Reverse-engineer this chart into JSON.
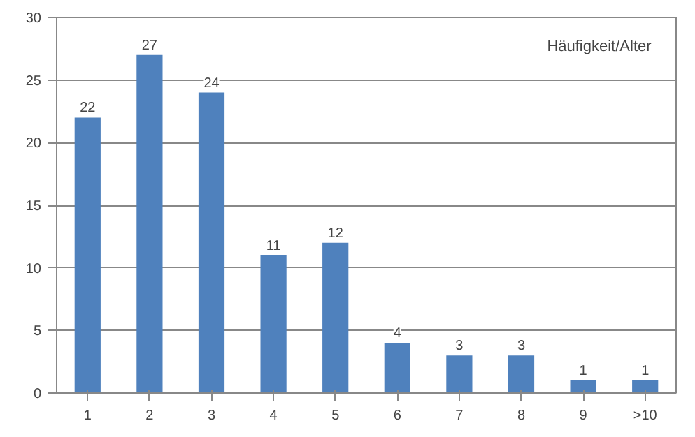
{
  "chart_data": {
    "type": "bar",
    "title": "Häufigkeit/Alter",
    "categories": [
      "1",
      "2",
      "3",
      "4",
      "5",
      "6",
      "7",
      "8",
      "9",
      ">10"
    ],
    "values": [
      22,
      27,
      24,
      11,
      12,
      4,
      3,
      3,
      1,
      1
    ],
    "color": "#4f81bd",
    "ylim": [
      0,
      30
    ],
    "yticks": [
      0,
      5,
      10,
      15,
      20,
      25,
      30
    ],
    "grid": "y",
    "data_labels": true
  }
}
